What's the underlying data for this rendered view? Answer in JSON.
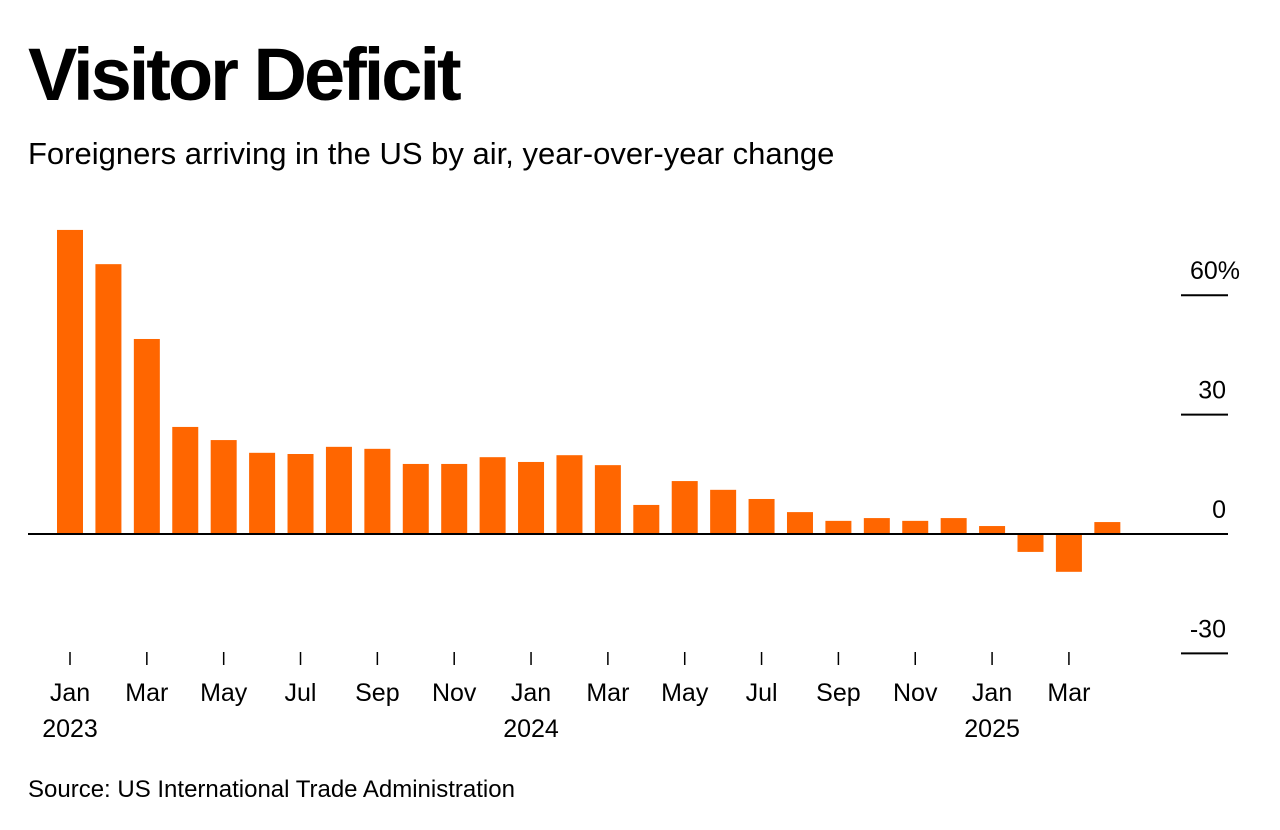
{
  "header": {
    "title": "Visitor Deficit",
    "subtitle": "Foreigners arriving in the US by air, year-over-year change"
  },
  "footer": {
    "source": "Source: US International Trade Administration"
  },
  "colors": {
    "bar": "#ff6600",
    "axis": "#000000",
    "text": "#000000",
    "background": "#ffffff"
  },
  "chart_data": {
    "type": "bar",
    "title": "Visitor Deficit",
    "subtitle": "Foreigners arriving in the US by air, year-over-year change",
    "xlabel": "",
    "ylabel": "",
    "y_unit": "%",
    "ylim": [
      -30,
      60
    ],
    "y_ticks": [
      {
        "value": 60,
        "label": "60%"
      },
      {
        "value": 30,
        "label": "30"
      },
      {
        "value": 0,
        "label": "0"
      },
      {
        "value": -30,
        "label": "-30"
      }
    ],
    "y_axis_position": "right",
    "grid": false,
    "legend": "none",
    "categories": [
      "Jan 2023",
      "Feb 2023",
      "Mar 2023",
      "Apr 2023",
      "May 2023",
      "Jun 2023",
      "Jul 2023",
      "Aug 2023",
      "Sep 2023",
      "Oct 2023",
      "Nov 2023",
      "Dec 2023",
      "Jan 2024",
      "Feb 2024",
      "Mar 2024",
      "Apr 2024",
      "May 2024",
      "Jun 2024",
      "Jul 2024",
      "Aug 2024",
      "Sep 2024",
      "Oct 2024",
      "Nov 2024",
      "Dec 2024",
      "Jan 2025",
      "Feb 2025",
      "Mar 2025",
      "Apr 2025"
    ],
    "series": [
      {
        "name": "Year-over-year change",
        "values": [
          76.4,
          67.8,
          49.0,
          26.9,
          23.6,
          20.4,
          20.1,
          21.9,
          21.4,
          17.6,
          17.6,
          19.3,
          18.1,
          19.8,
          17.3,
          7.3,
          13.3,
          11.1,
          8.8,
          5.5,
          3.3,
          4.0,
          3.3,
          4.0,
          2.0,
          -4.5,
          -9.5,
          3.0
        ]
      }
    ],
    "x_ticks": [
      {
        "index": 0,
        "label": "Jan",
        "year": "2023"
      },
      {
        "index": 2,
        "label": "Mar",
        "year": ""
      },
      {
        "index": 4,
        "label": "May",
        "year": ""
      },
      {
        "index": 6,
        "label": "Jul",
        "year": ""
      },
      {
        "index": 8,
        "label": "Sep",
        "year": ""
      },
      {
        "index": 10,
        "label": "Nov",
        "year": ""
      },
      {
        "index": 12,
        "label": "Jan",
        "year": "2024"
      },
      {
        "index": 14,
        "label": "Mar",
        "year": ""
      },
      {
        "index": 16,
        "label": "May",
        "year": ""
      },
      {
        "index": 18,
        "label": "Jul",
        "year": ""
      },
      {
        "index": 20,
        "label": "Sep",
        "year": ""
      },
      {
        "index": 22,
        "label": "Nov",
        "year": ""
      },
      {
        "index": 24,
        "label": "Jan",
        "year": "2025"
      },
      {
        "index": 26,
        "label": "Mar",
        "year": ""
      }
    ]
  }
}
